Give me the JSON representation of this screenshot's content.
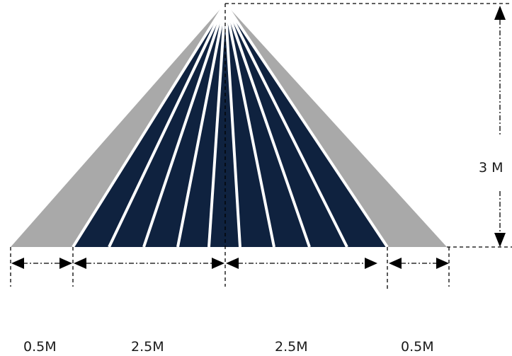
{
  "labels": {
    "height": "3 M",
    "segments": [
      "0.5M",
      "2.5M",
      "2.5M",
      "0.5M"
    ]
  },
  "colors": {
    "outer": "#a9a9a9",
    "inner": "#0f223f",
    "stripe": "#ffffff",
    "dim": "#000000"
  }
}
